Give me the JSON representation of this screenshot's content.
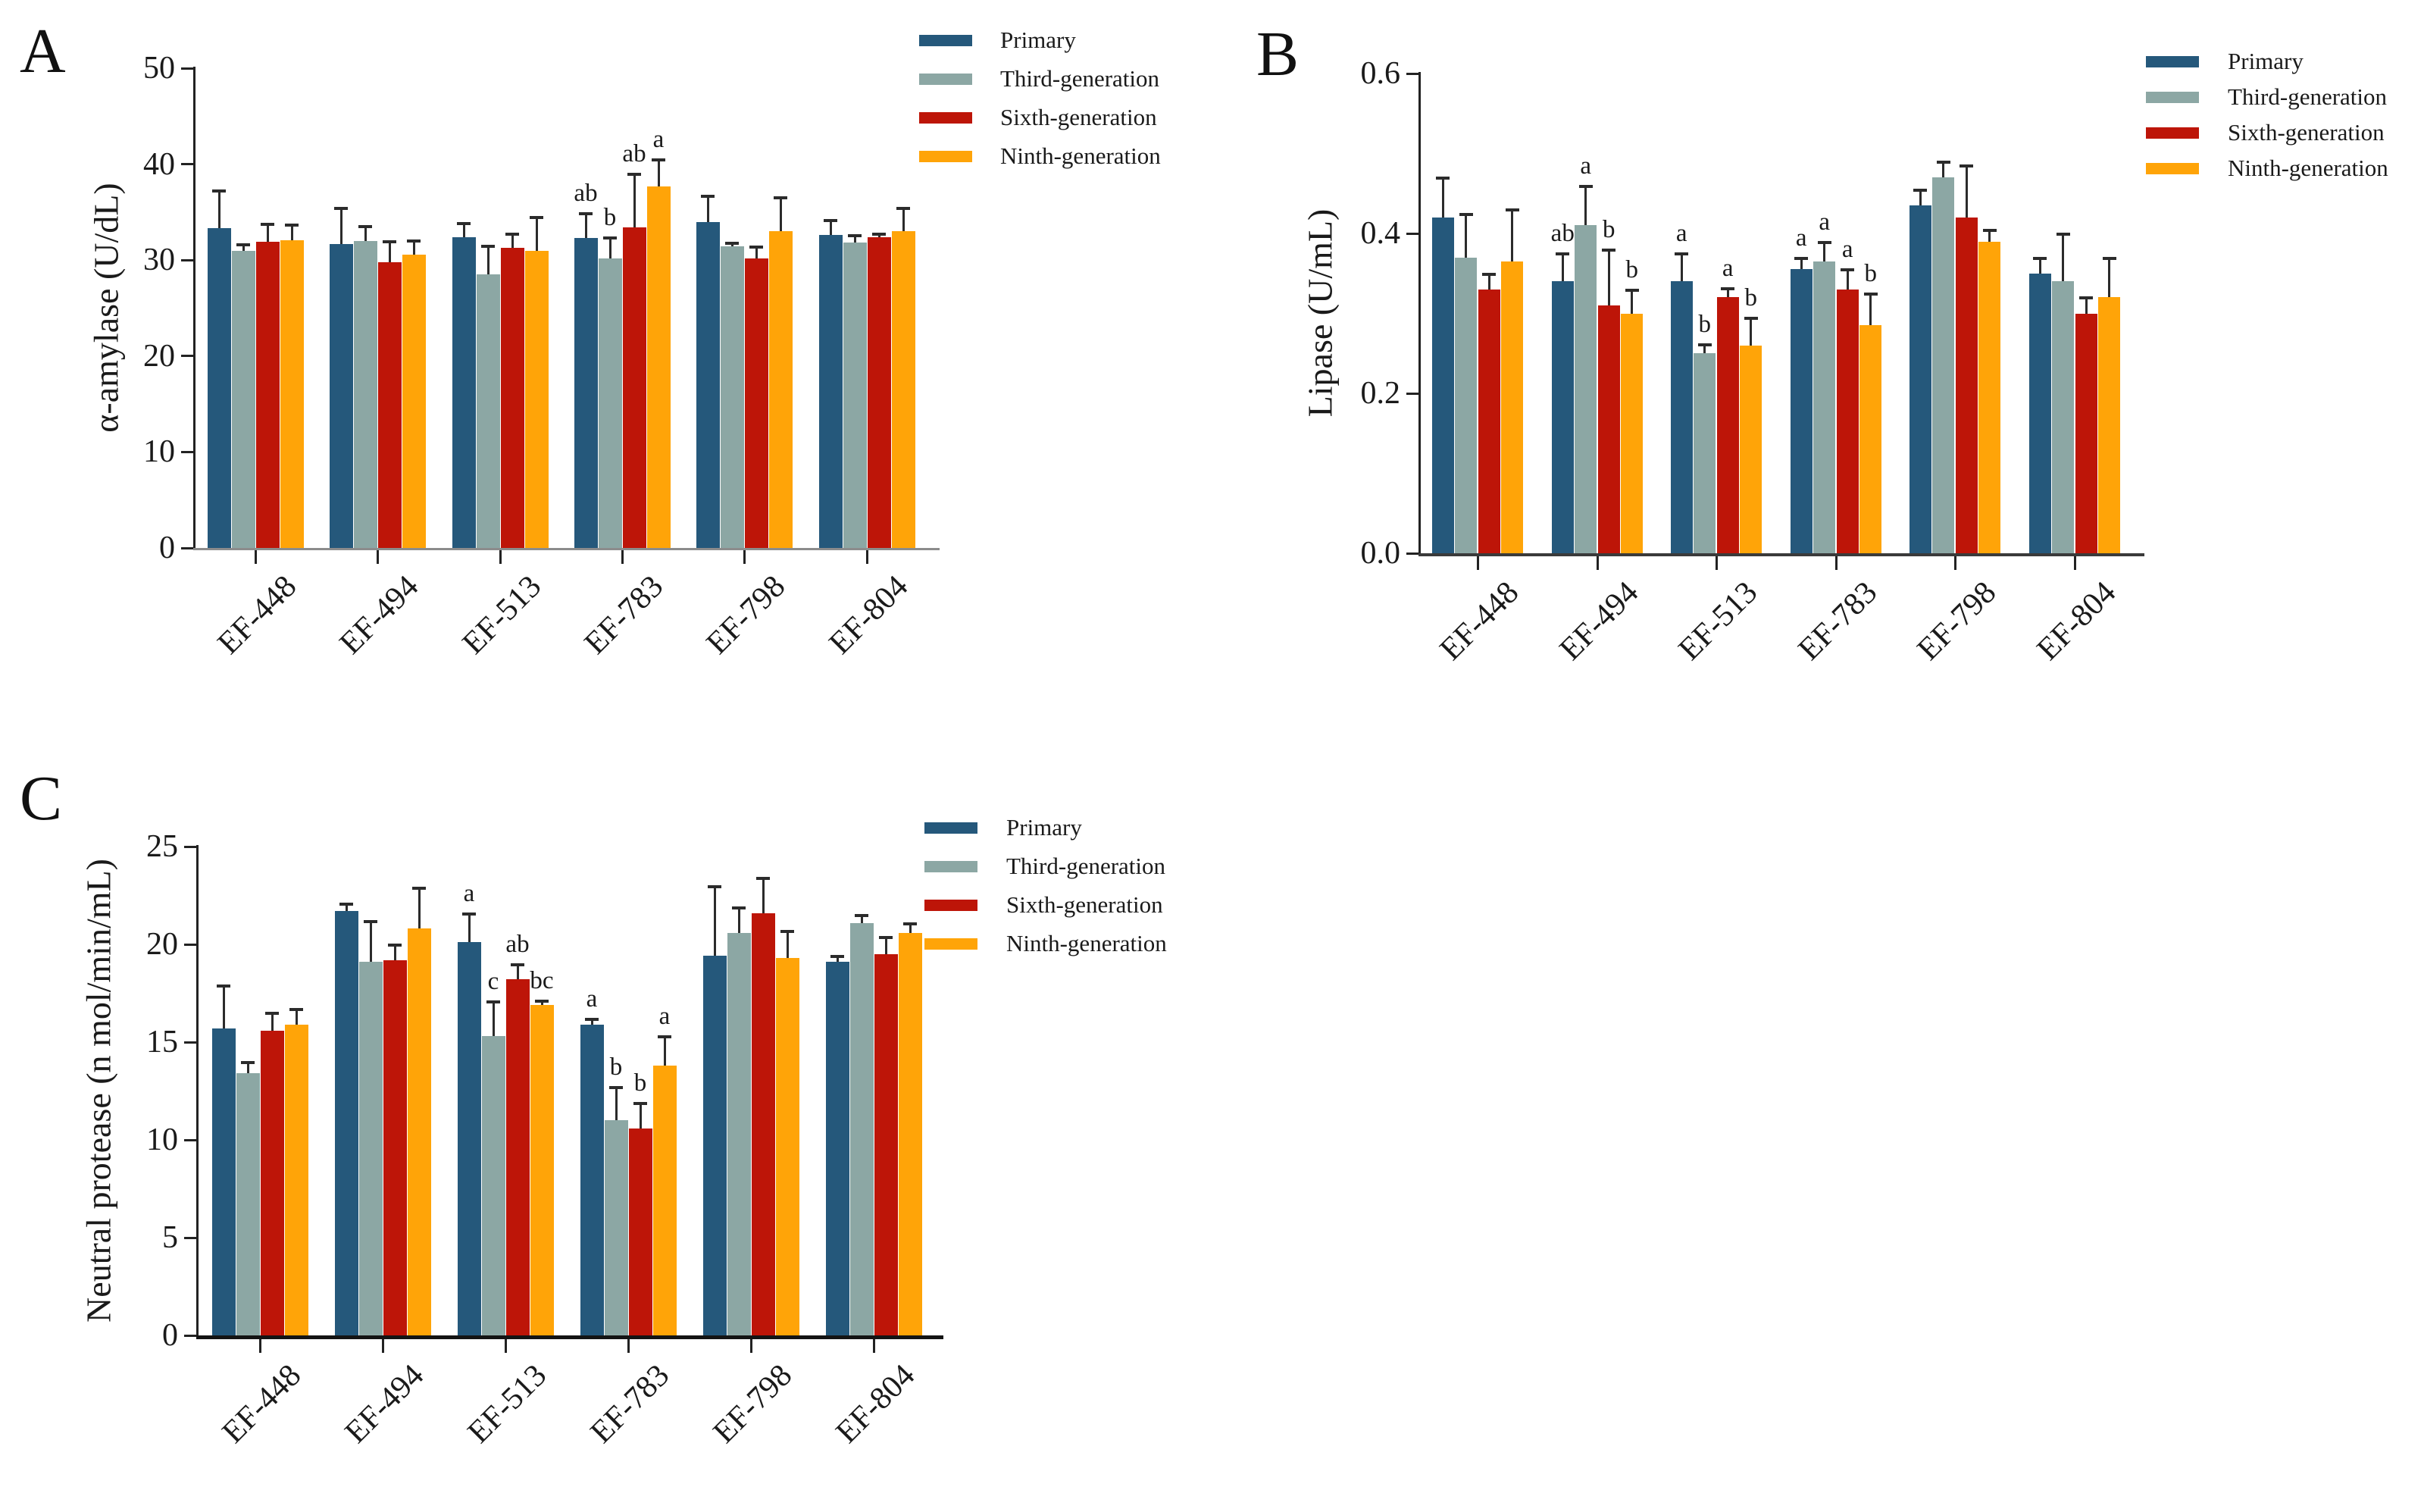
{
  "legend": {
    "entries": [
      {
        "label": "Primary",
        "color": "#25587B"
      },
      {
        "label": "Third-generation",
        "color": "#8CA7A4"
      },
      {
        "label": "Sixth-generation",
        "color": "#BD1508"
      },
      {
        "label": "Ninth-generation",
        "color": "#FFA408"
      }
    ]
  },
  "chart_data": [
    {
      "type": "bar",
      "panel_label": "A",
      "title": "",
      "xlabel": "",
      "ylabel": "α-amylase (U/dL)",
      "ylim": [
        0,
        50
      ],
      "yticks": [
        0,
        10,
        20,
        30,
        40,
        50
      ],
      "ytick_labels": [
        "0",
        "10",
        "20",
        "30",
        "40",
        "50"
      ],
      "grid": false,
      "legend_position": "top-right",
      "categories": [
        "EF-448",
        "EF-494",
        "EF-513",
        "EF-783",
        "EF-798",
        "EF-804"
      ],
      "series": [
        {
          "name": "Primary",
          "color": "#25587B",
          "values": [
            33.3,
            31.7,
            32.4,
            32.3,
            34.0,
            32.6
          ],
          "errors": [
            4.0,
            3.8,
            1.5,
            2.6,
            2.7,
            1.6
          ],
          "letters": [
            "",
            "",
            "",
            "ab",
            "",
            ""
          ]
        },
        {
          "name": "Third-generation",
          "color": "#8CA7A4",
          "values": [
            31.0,
            32.0,
            28.5,
            30.2,
            31.4,
            31.8
          ],
          "errors": [
            0.7,
            1.6,
            3.0,
            2.2,
            0.4,
            0.8
          ],
          "letters": [
            "",
            "",
            "",
            "b",
            "",
            ""
          ]
        },
        {
          "name": "Sixth-generation",
          "color": "#BD1508",
          "values": [
            31.9,
            29.8,
            31.3,
            33.4,
            30.2,
            32.4
          ],
          "errors": [
            1.9,
            2.2,
            1.5,
            5.6,
            1.2,
            0.4
          ],
          "letters": [
            "",
            "",
            "",
            "ab",
            "",
            ""
          ]
        },
        {
          "name": "Ninth-generation",
          "color": "#FFA408",
          "values": [
            32.1,
            30.6,
            31.0,
            37.7,
            33.0,
            33.0
          ],
          "errors": [
            1.6,
            1.5,
            3.5,
            2.8,
            3.6,
            2.5
          ],
          "letters": [
            "",
            "",
            "",
            "a",
            "",
            ""
          ]
        }
      ]
    },
    {
      "type": "bar",
      "panel_label": "B",
      "title": "",
      "xlabel": "",
      "ylabel": "Lipase (U/mL)",
      "ylim": [
        0,
        0.6
      ],
      "yticks": [
        0,
        0.2,
        0.4,
        0.6
      ],
      "ytick_labels": [
        "0.0",
        "0.2",
        "0.4",
        "0.6"
      ],
      "grid": false,
      "legend_position": "top-right",
      "categories": [
        "EF-448",
        "EF-494",
        "EF-513",
        "EF-783",
        "EF-798",
        "EF-804"
      ],
      "series": [
        {
          "name": "Primary",
          "color": "#25587B",
          "values": [
            0.42,
            0.34,
            0.34,
            0.355,
            0.435,
            0.35
          ],
          "errors": [
            0.05,
            0.035,
            0.035,
            0.015,
            0.02,
            0.02
          ],
          "letters": [
            "",
            "ab",
            "a",
            "a",
            "",
            ""
          ]
        },
        {
          "name": "Third-generation",
          "color": "#8CA7A4",
          "values": [
            0.37,
            0.41,
            0.25,
            0.365,
            0.47,
            0.34
          ],
          "errors": [
            0.055,
            0.05,
            0.012,
            0.025,
            0.02,
            0.06
          ],
          "letters": [
            "",
            "a",
            "b",
            "a",
            "",
            ""
          ]
        },
        {
          "name": "Sixth-generation",
          "color": "#BD1508",
          "values": [
            0.33,
            0.31,
            0.32,
            0.33,
            0.42,
            0.3
          ],
          "errors": [
            0.02,
            0.07,
            0.012,
            0.025,
            0.065,
            0.02
          ],
          "letters": [
            "",
            "b",
            "a",
            "a",
            "",
            ""
          ]
        },
        {
          "name": "Ninth-generation",
          "color": "#FFA408",
          "values": [
            0.365,
            0.3,
            0.26,
            0.285,
            0.39,
            0.32
          ],
          "errors": [
            0.065,
            0.03,
            0.035,
            0.04,
            0.015,
            0.05
          ],
          "letters": [
            "",
            "b",
            "b",
            "b",
            "",
            ""
          ]
        }
      ]
    },
    {
      "type": "bar",
      "panel_label": "C",
      "title": "",
      "xlabel": "",
      "ylabel": "Neutral protease (n mol/min/mL)",
      "ylim": [
        0,
        25
      ],
      "yticks": [
        0,
        5,
        10,
        15,
        20,
        25
      ],
      "ytick_labels": [
        "0",
        "5",
        "10",
        "15",
        "20",
        "25"
      ],
      "grid": false,
      "legend_position": "top-right",
      "categories": [
        "EF-448",
        "EF-494",
        "EF-513",
        "EF-783",
        "EF-798",
        "EF-804"
      ],
      "series": [
        {
          "name": "Primary",
          "color": "#25587B",
          "values": [
            15.7,
            21.7,
            20.1,
            15.9,
            19.4,
            19.1
          ],
          "errors": [
            2.2,
            0.4,
            1.5,
            0.3,
            3.6,
            0.3
          ],
          "letters": [
            "",
            "",
            "a",
            "a",
            "",
            ""
          ]
        },
        {
          "name": "Third-generation",
          "color": "#8CA7A4",
          "values": [
            13.4,
            19.1,
            15.3,
            11.0,
            20.6,
            21.1
          ],
          "errors": [
            0.6,
            2.1,
            1.8,
            1.7,
            1.3,
            0.4
          ],
          "letters": [
            "",
            "",
            "c",
            "b",
            "",
            ""
          ]
        },
        {
          "name": "Sixth-generation",
          "color": "#BD1508",
          "values": [
            15.6,
            19.2,
            18.2,
            10.6,
            21.6,
            19.5
          ],
          "errors": [
            0.9,
            0.8,
            0.8,
            1.3,
            1.8,
            0.9
          ],
          "letters": [
            "",
            "",
            "ab",
            "b",
            "",
            ""
          ]
        },
        {
          "name": "Ninth-generation",
          "color": "#FFA408",
          "values": [
            15.9,
            20.8,
            16.9,
            13.8,
            19.3,
            20.6
          ],
          "errors": [
            0.8,
            2.1,
            0.25,
            1.5,
            1.4,
            0.5
          ],
          "letters": [
            "",
            "",
            "bc",
            "a",
            "",
            ""
          ]
        }
      ]
    }
  ]
}
